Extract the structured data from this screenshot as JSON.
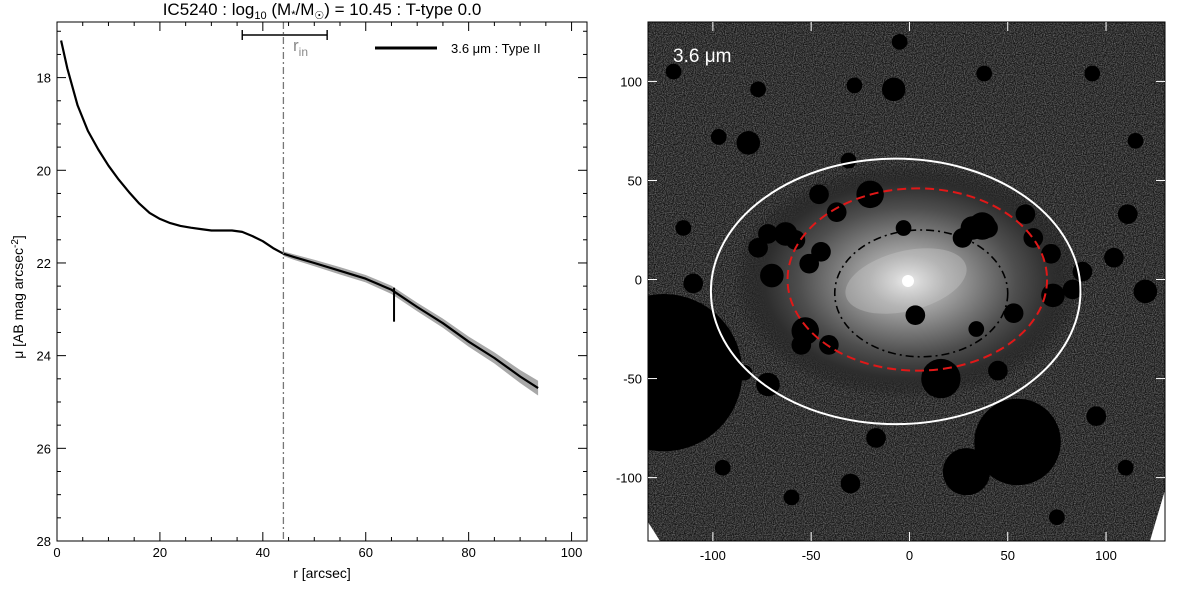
{
  "figure_title": "IC5240 : log",
  "title_sub": "10",
  "title_rest": " (M",
  "title_star": "*",
  "title_mid": "/M",
  "title_sun": "☉",
  "title_end": ") = 10.45 : T-type 0.0",
  "chart_data": [
    {
      "type": "line",
      "title": "IC5240 : log10 (M*/M☉) = 10.45 : T-type 0.0",
      "xlabel": "r [arcsec]",
      "ylabel": "μ [AB mag arcsec-2]",
      "ylabel_main": "μ [AB mag arcsec",
      "ylabel_sup": "-2",
      "ylabel_close": "]",
      "xlim": [
        0,
        103
      ],
      "ylim": [
        28,
        16.8
      ],
      "y_inverted": true,
      "xticks": [
        0,
        20,
        40,
        60,
        80,
        100
      ],
      "yticks": [
        18,
        20,
        22,
        24,
        26,
        28
      ],
      "legend": {
        "label": "3.6 μm : Type II",
        "placement": "top-right"
      },
      "series": [
        {
          "name": "3.6 μm : Type II",
          "color": "#000000",
          "band_color": "#999999",
          "x": [
            0.8,
            2,
            4,
            6,
            8,
            10,
            12,
            14,
            16,
            18,
            20,
            22,
            24,
            26,
            28,
            30,
            32,
            34,
            36,
            38,
            40,
            42,
            44,
            46,
            50,
            55,
            60,
            65,
            70,
            75,
            80,
            85,
            90,
            93.5
          ],
          "y": [
            17.2,
            17.8,
            18.6,
            19.15,
            19.55,
            19.9,
            20.2,
            20.47,
            20.72,
            20.92,
            21.05,
            21.14,
            21.2,
            21.24,
            21.27,
            21.3,
            21.3,
            21.3,
            21.33,
            21.42,
            21.53,
            21.68,
            21.8,
            21.87,
            22.0,
            22.17,
            22.34,
            22.58,
            22.95,
            23.3,
            23.7,
            24.05,
            24.45,
            24.7
          ],
          "band": [
            0,
            0,
            0,
            0,
            0,
            0,
            0,
            0,
            0,
            0,
            0,
            0,
            0,
            0,
            0,
            0,
            0,
            0,
            0,
            0,
            0,
            0,
            0.05,
            0.06,
            0.07,
            0.08,
            0.08,
            0.09,
            0.09,
            0.1,
            0.11,
            0.12,
            0.14,
            0.16
          ]
        }
      ],
      "annotations": {
        "r_in_label": "r",
        "r_in_sub": "in",
        "r_in": 44,
        "r_in_range": [
          36,
          52.5
        ],
        "break_tick": {
          "r": 65.5,
          "mu": 22.9
        }
      }
    },
    {
      "type": "image",
      "label": "3.6 μm",
      "xlim": [
        -133,
        130
      ],
      "ylim": [
        -132,
        130
      ],
      "xticks": [
        -100,
        -50,
        0,
        50,
        100
      ],
      "yticks": [
        100,
        50,
        0,
        -50,
        -100
      ],
      "ellipses": [
        {
          "name": "outer",
          "color": "#ffffff",
          "style": "solid",
          "cx": -7,
          "cy": -6,
          "rx": 94,
          "ry": 67
        },
        {
          "name": "break",
          "color": "#e01818",
          "style": "dashed",
          "cx": 4,
          "cy": 0,
          "rx": 66,
          "ry": 46
        },
        {
          "name": "inner",
          "color": "#000000",
          "style": "dash-dot",
          "cx": 6,
          "cy": -7,
          "rx": 44,
          "ry": 32
        }
      ]
    }
  ]
}
